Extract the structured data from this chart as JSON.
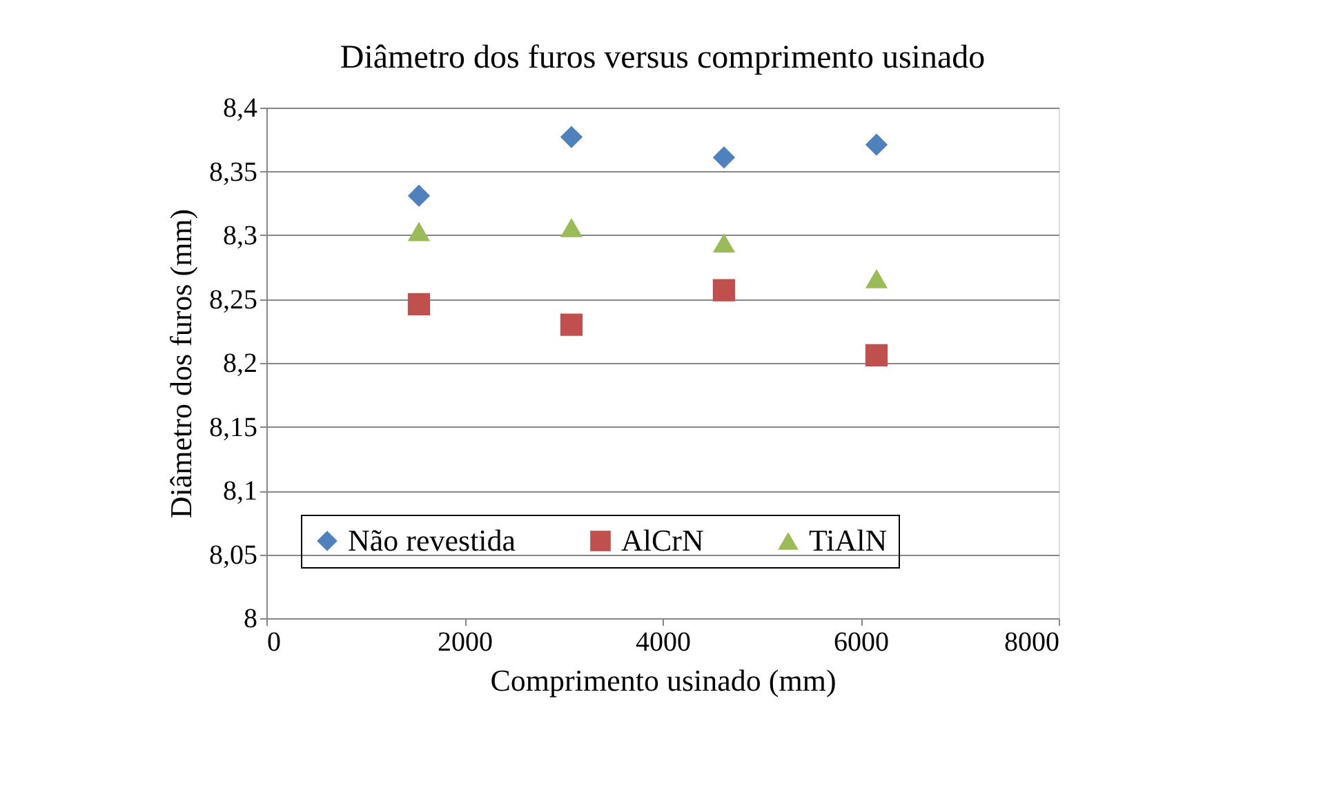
{
  "chart_data": {
    "type": "scatter",
    "title": "Diâmetro dos furos versus comprimento usinado",
    "xlabel": "Comprimento usinado (mm)",
    "ylabel": "Diâmetro dos furos (mm)",
    "x": [
      1540,
      3080,
      4620,
      6160
    ],
    "series": [
      {
        "name": "Não revestida",
        "color": "#4f81bd",
        "marker": "diamond",
        "values": [
          8.331,
          8.377,
          8.361,
          8.371
        ]
      },
      {
        "name": "AlCrN",
        "color": "#c0504d",
        "marker": "square",
        "values": [
          8.246,
          8.23,
          8.257,
          8.206
        ]
      },
      {
        "name": "TiAlN",
        "color": "#9bbb59",
        "marker": "triangle",
        "values": [
          8.303,
          8.306,
          8.294,
          8.266
        ]
      }
    ],
    "xlim": [
      0,
      8000
    ],
    "xticks": [
      0,
      2000,
      4000,
      6000,
      8000
    ],
    "ylim": [
      8,
      8.4
    ],
    "yticks": [
      8,
      {
        "value": 8.05,
        "label": "8,05"
      },
      {
        "value": 8.1,
        "label": "8,1"
      },
      {
        "value": 8.15,
        "label": "8,15"
      },
      {
        "value": 8.2,
        "label": "8,2"
      },
      {
        "value": 8.25,
        "label": "8,25"
      },
      {
        "value": 8.3,
        "label": "8,3"
      },
      {
        "value": 8.35,
        "label": "8,35"
      },
      {
        "value": 8.4,
        "label": "8,4"
      }
    ],
    "grid": "y",
    "legend": "bottom"
  }
}
